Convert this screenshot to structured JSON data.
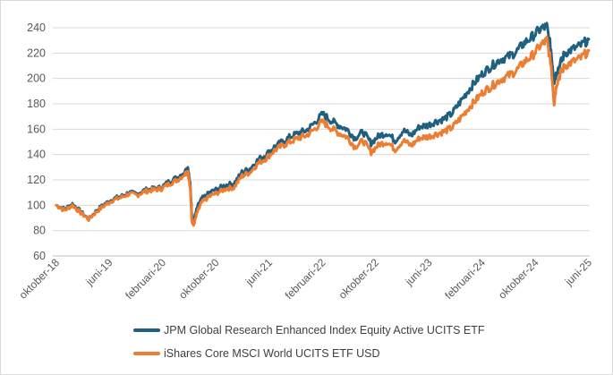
{
  "chart_data": {
    "type": "line",
    "title": "",
    "xlabel": "",
    "ylabel": "",
    "ylim": [
      60,
      240
    ],
    "yticks": [
      60,
      80,
      100,
      120,
      140,
      160,
      180,
      200,
      220,
      240
    ],
    "gridlines": "horizontal",
    "legend_position": "bottom",
    "xticks": [
      "oktober-18",
      "juni-19",
      "februari-20",
      "oktober-20",
      "juni-21",
      "februari-22",
      "oktober-22",
      "juni-23",
      "februari-24",
      "oktober-24",
      "juni-25"
    ],
    "series": [
      {
        "name": "JPM Global Research Enhanced Index Equity Active UCITS ETF",
        "color": "#1f5f7f",
        "values": [
          [
            0,
            100
          ],
          [
            1,
            97
          ],
          [
            2,
            101
          ],
          [
            3,
            95
          ],
          [
            4,
            89
          ],
          [
            5,
            96
          ],
          [
            6,
            101
          ],
          [
            7,
            105
          ],
          [
            8,
            107
          ],
          [
            9,
            110
          ],
          [
            10,
            109
          ],
          [
            11,
            112
          ],
          [
            12,
            113
          ],
          [
            13,
            114
          ],
          [
            14,
            119
          ],
          [
            15,
            122
          ],
          [
            16,
            127
          ],
          [
            16.3,
            130
          ],
          [
            16.6,
            115
          ],
          [
            16.8,
            92
          ],
          [
            17,
            87
          ],
          [
            17.5,
            99
          ],
          [
            18,
            105
          ],
          [
            19,
            110
          ],
          [
            20,
            113
          ],
          [
            21,
            116
          ],
          [
            22,
            117
          ],
          [
            23,
            126
          ],
          [
            24,
            129
          ],
          [
            25,
            136
          ],
          [
            26,
            140
          ],
          [
            27,
            146
          ],
          [
            28,
            150
          ],
          [
            29,
            154
          ],
          [
            30,
            157
          ],
          [
            31,
            159
          ],
          [
            32,
            165
          ],
          [
            33,
            172
          ],
          [
            34,
            167
          ],
          [
            35,
            163
          ],
          [
            36,
            160
          ],
          [
            37,
            153
          ],
          [
            38,
            158
          ],
          [
            39,
            149
          ],
          [
            40,
            155
          ],
          [
            41,
            157
          ],
          [
            42,
            151
          ],
          [
            43,
            159
          ],
          [
            44,
            155
          ],
          [
            45,
            162
          ],
          [
            46,
            163
          ],
          [
            47,
            166
          ],
          [
            48,
            168
          ],
          [
            49,
            172
          ],
          [
            50,
            181
          ],
          [
            51,
            190
          ],
          [
            52,
            198
          ],
          [
            53,
            205
          ],
          [
            54,
            210
          ],
          [
            55,
            215
          ],
          [
            56,
            217
          ],
          [
            57,
            221
          ],
          [
            58,
            228
          ],
          [
            59,
            233
          ],
          [
            60,
            239
          ],
          [
            60.8,
            241
          ],
          [
            61.3,
            223
          ],
          [
            61.7,
            198
          ],
          [
            62,
            205
          ],
          [
            62.5,
            212
          ],
          [
            63,
            220
          ],
          [
            64,
            223
          ],
          [
            65,
            226
          ],
          [
            66,
            231
          ]
        ]
      },
      {
        "name": "iShares Core MSCI World UCITS ETF USD",
        "color": "#ed7d31",
        "values": [
          [
            0,
            100
          ],
          [
            1,
            96
          ],
          [
            2,
            100
          ],
          [
            3,
            94
          ],
          [
            4,
            89
          ],
          [
            5,
            95
          ],
          [
            6,
            100
          ],
          [
            7,
            104
          ],
          [
            8,
            106
          ],
          [
            9,
            109
          ],
          [
            10,
            108
          ],
          [
            11,
            111
          ],
          [
            12,
            112
          ],
          [
            13,
            113
          ],
          [
            14,
            117
          ],
          [
            15,
            120
          ],
          [
            16,
            125
          ],
          [
            16.3,
            127
          ],
          [
            16.6,
            112
          ],
          [
            16.8,
            88
          ],
          [
            17,
            84
          ],
          [
            17.5,
            95
          ],
          [
            18,
            102
          ],
          [
            19,
            107
          ],
          [
            20,
            110
          ],
          [
            21,
            113
          ],
          [
            22,
            114
          ],
          [
            23,
            123
          ],
          [
            24,
            126
          ],
          [
            25,
            133
          ],
          [
            26,
            137
          ],
          [
            27,
            143
          ],
          [
            28,
            147
          ],
          [
            29,
            150
          ],
          [
            30,
            153
          ],
          [
            31,
            155
          ],
          [
            32,
            160
          ],
          [
            33,
            166
          ],
          [
            34,
            161
          ],
          [
            35,
            157
          ],
          [
            36,
            154
          ],
          [
            37,
            146
          ],
          [
            38,
            151
          ],
          [
            39,
            142
          ],
          [
            40,
            148
          ],
          [
            41,
            150
          ],
          [
            42,
            144
          ],
          [
            43,
            151
          ],
          [
            44,
            147
          ],
          [
            45,
            153
          ],
          [
            46,
            154
          ],
          [
            47,
            156
          ],
          [
            48,
            158
          ],
          [
            49,
            161
          ],
          [
            50,
            168
          ],
          [
            51,
            176
          ],
          [
            52,
            183
          ],
          [
            53,
            190
          ],
          [
            54,
            194
          ],
          [
            55,
            199
          ],
          [
            56,
            202
          ],
          [
            57,
            206
          ],
          [
            58,
            213
          ],
          [
            59,
            218
          ],
          [
            60,
            226
          ],
          [
            60.8,
            230
          ],
          [
            61.3,
            212
          ],
          [
            61.7,
            181
          ],
          [
            62,
            196
          ],
          [
            62.5,
            204
          ],
          [
            63,
            210
          ],
          [
            64,
            213
          ],
          [
            65,
            216
          ],
          [
            66,
            222
          ]
        ]
      }
    ]
  }
}
